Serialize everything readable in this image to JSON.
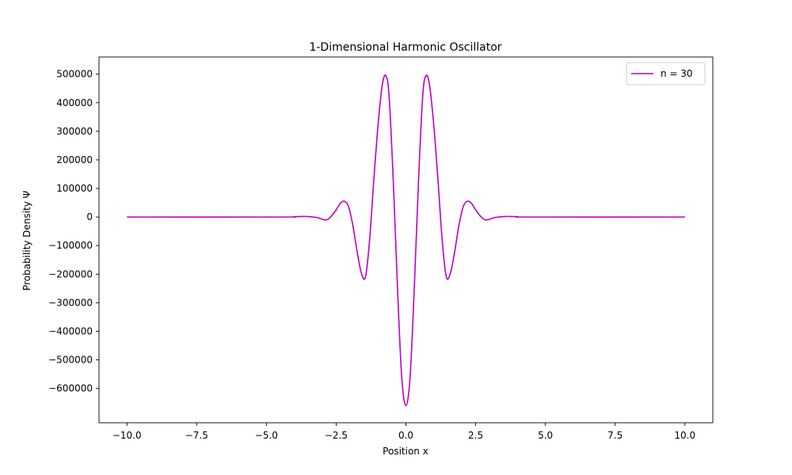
{
  "chart_data": {
    "type": "line",
    "title": "1-Dimensional Harmonic Oscillator",
    "xlabel": "Position x",
    "ylabel": "Probability Density Ψ",
    "xlim": [
      -11,
      11
    ],
    "ylim": [
      -720000,
      560000
    ],
    "x_ticks": [
      -10,
      -7.5,
      -5,
      -2.5,
      0,
      2.5,
      5,
      7.5,
      10
    ],
    "x_tick_labels": [
      "−10.0",
      "−7.5",
      "−5.0",
      "−2.5",
      "0.0",
      "2.5",
      "5.0",
      "7.5",
      "10.0"
    ],
    "y_ticks": [
      500000,
      400000,
      300000,
      200000,
      100000,
      0,
      -100000,
      -200000,
      -300000,
      -400000,
      -500000,
      -600000
    ],
    "y_tick_labels": [
      "500000",
      "400000",
      "300000",
      "200000",
      "100000",
      "0",
      "−100000",
      "−200000",
      "−300000",
      "−400000",
      "−500000",
      "−600000"
    ],
    "grid": false,
    "legend_position": "top-right",
    "series": [
      {
        "name": "n = 30",
        "color": "#bf00bf",
        "x": [
          -10,
          -4.5,
          -4.0,
          -3.6,
          -3.2,
          -3.0,
          -2.85,
          -2.7,
          -2.5,
          -2.35,
          -2.2,
          -2.05,
          -1.9,
          -1.75,
          -1.6,
          -1.45,
          -1.3,
          -1.15,
          -1.0,
          -0.85,
          -0.72,
          -0.6,
          -0.45,
          -0.3,
          -0.15,
          0.0,
          0.15,
          0.3,
          0.45,
          0.6,
          0.72,
          0.85,
          1.0,
          1.15,
          1.3,
          1.45,
          1.6,
          1.75,
          1.9,
          2.05,
          2.2,
          2.35,
          2.5,
          2.7,
          2.85,
          3.0,
          3.2,
          3.6,
          4.0,
          4.5,
          10
        ],
        "y": [
          0,
          0,
          1000,
          2000,
          -1500,
          -8000,
          -10000,
          0,
          25000,
          48000,
          55000,
          35000,
          -30000,
          -120000,
          -195000,
          -210000,
          -80000,
          130000,
          320000,
          460000,
          495000,
          420000,
          120000,
          -250000,
          -560000,
          -660000,
          -560000,
          -250000,
          120000,
          420000,
          495000,
          460000,
          320000,
          130000,
          -80000,
          -210000,
          -195000,
          -120000,
          -30000,
          35000,
          55000,
          48000,
          25000,
          0,
          -10000,
          -8000,
          -1500,
          2000,
          1000,
          0,
          0
        ]
      }
    ]
  }
}
